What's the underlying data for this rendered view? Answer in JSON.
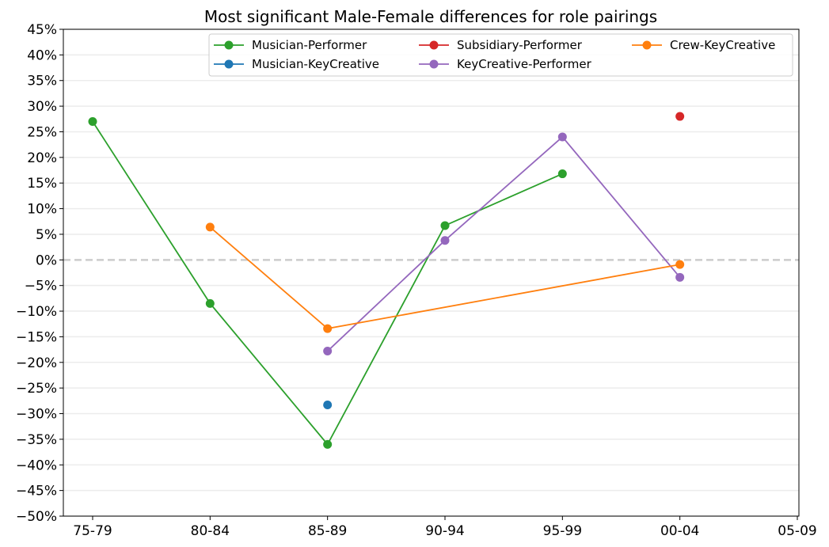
{
  "chart_data": {
    "type": "line",
    "title": "Most significant Male-Female differences for role pairings",
    "xlabel": "",
    "ylabel": "",
    "categories": [
      "75-79",
      "80-84",
      "85-89",
      "90-94",
      "95-99",
      "00-04",
      "05-09"
    ],
    "ylim": [
      -50,
      45
    ],
    "y_ticks": [
      45,
      40,
      35,
      30,
      25,
      20,
      15,
      10,
      5,
      0,
      -5,
      -10,
      -15,
      -20,
      -25,
      -30,
      -35,
      -40,
      -45,
      -50
    ],
    "y_tick_labels": [
      "45%",
      "40%",
      "35%",
      "30%",
      "25%",
      "20%",
      "15%",
      "10%",
      "5%",
      "0%",
      "−5%",
      "−10%",
      "−15%",
      "−20%",
      "−25%",
      "−30%",
      "−35%",
      "−40%",
      "−45%",
      "−50%"
    ],
    "y_unit": "%",
    "grid": "horizontal",
    "reference_line": 0,
    "legend_position": "top-right",
    "legend_columns": 3,
    "series": [
      {
        "name": "Musician-Performer",
        "color": "#2ca02c",
        "values": [
          27,
          -8.5,
          -36,
          6.7,
          16.8,
          null,
          null
        ]
      },
      {
        "name": "Musician-KeyCreative",
        "color": "#1f77b4",
        "values": [
          null,
          null,
          -28.3,
          null,
          null,
          null,
          null
        ]
      },
      {
        "name": "Subsidiary-Performer",
        "color": "#d62728",
        "values": [
          null,
          null,
          null,
          null,
          null,
          28,
          null
        ]
      },
      {
        "name": "KeyCreative-Performer",
        "color": "#9467bd",
        "values": [
          null,
          null,
          -17.8,
          3.8,
          24,
          -3.4,
          null
        ]
      },
      {
        "name": "Crew-KeyCreative",
        "color": "#ff7f0e",
        "values": [
          null,
          6.4,
          -13.4,
          null,
          null,
          -0.9,
          null
        ]
      }
    ]
  }
}
